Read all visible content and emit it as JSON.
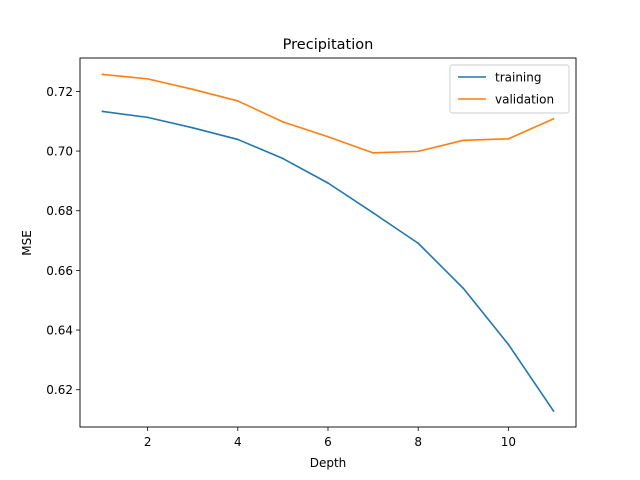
{
  "chart_data": {
    "type": "line",
    "title": "Precipitation",
    "xlabel": "Depth",
    "ylabel": "MSE",
    "x": [
      1,
      2,
      3,
      4,
      5,
      6,
      7,
      8,
      9,
      10,
      11
    ],
    "xlim": [
      0.5,
      11.5
    ],
    "ylim": [
      0.6075,
      0.7312
    ],
    "xticks": [
      2,
      4,
      6,
      8,
      10
    ],
    "yticks": [
      0.62,
      0.64,
      0.66,
      0.68,
      0.7,
      0.72
    ],
    "ytick_labels": [
      "0.62",
      "0.64",
      "0.66",
      "0.68",
      "0.70",
      "0.72"
    ],
    "grid": false,
    "legend_position": "top-right",
    "series": [
      {
        "name": "training",
        "color": "#1f77b4",
        "values": [
          0.7133,
          0.7113,
          0.7078,
          0.7039,
          0.6975,
          0.6893,
          0.6793,
          0.6691,
          0.654,
          0.6352,
          0.6129
        ]
      },
      {
        "name": "validation",
        "color": "#ff7f0e",
        "values": [
          0.7257,
          0.7242,
          0.7207,
          0.7168,
          0.7098,
          0.7048,
          0.6994,
          0.6999,
          0.7036,
          0.7041,
          0.7108
        ]
      }
    ]
  }
}
